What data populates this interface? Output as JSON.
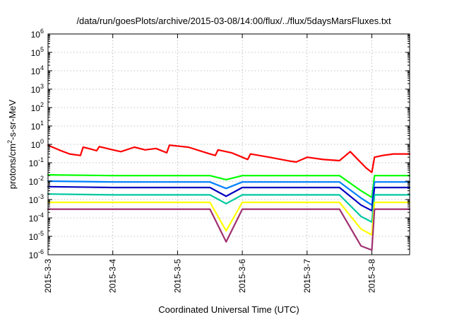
{
  "chart_data": {
    "type": "line",
    "title": "/data/run/goesPlots/archive/2015-03-08/14:00/flux/../flux/5daysMarsFluxes.txt",
    "xlabel": "Coordinated Universal Time (UTC)",
    "ylabel": "protons/cm2-s-sr-MeV",
    "ylabel_base": "protons/cm",
    "ylabel_sup": "2",
    "ylabel_rest": "-s-sr-MeV",
    "xscale": "time (days)",
    "yscale": "log",
    "xlim": [
      "2015-03-03 00:00",
      "2015-03-08 14:00"
    ],
    "ylim": [
      1e-06,
      1000000.0
    ],
    "grid": true,
    "legend": "none",
    "x_ticks": [
      "2015-3-3",
      "2015-3-4",
      "2015-3-5",
      "2015-3-6",
      "2015-3-7",
      "2015-3-8"
    ],
    "y_ticks": [
      {
        "base": "10",
        "exp": "-6"
      },
      {
        "base": "10",
        "exp": "-5"
      },
      {
        "base": "10",
        "exp": "-4"
      },
      {
        "base": "10",
        "exp": "-3"
      },
      {
        "base": "10",
        "exp": "-2"
      },
      {
        "base": "10",
        "exp": "-1"
      },
      {
        "base": "10",
        "exp": "0"
      },
      {
        "base": "10",
        "exp": "1"
      },
      {
        "base": "10",
        "exp": "2"
      },
      {
        "base": "10",
        "exp": "3"
      },
      {
        "base": "10",
        "exp": "4"
      },
      {
        "base": "10",
        "exp": "5"
      },
      {
        "base": "10",
        "exp": "6"
      }
    ],
    "series": [
      {
        "color": "#ff0000",
        "x": [
          "2015-03-03 00:00",
          "2015-03-03 04:00",
          "2015-03-03 08:00",
          "2015-03-03 12:00",
          "2015-03-03 13:00",
          "2015-03-03 16:00",
          "2015-03-03 18:00",
          "2015-03-03 19:00",
          "2015-03-04 00:00",
          "2015-03-04 03:00",
          "2015-03-04 08:00",
          "2015-03-04 12:00",
          "2015-03-04 16:00",
          "2015-03-04 20:00",
          "2015-03-04 21:00",
          "2015-03-05 04:00",
          "2015-03-05 12:00",
          "2015-03-05 14:00",
          "2015-03-05 15:00",
          "2015-03-05 20:00",
          "2015-03-06 00:00",
          "2015-03-06 02:00",
          "2015-03-06 03:00",
          "2015-03-06 10:00",
          "2015-03-06 18:00",
          "2015-03-06 20:00",
          "2015-03-07 00:00",
          "2015-03-07 06:00",
          "2015-03-07 12:00",
          "2015-03-07 16:00",
          "2015-03-07 20:00",
          "2015-03-07 22:00",
          "2015-03-08 00:00",
          "2015-03-08 01:00",
          "2015-03-08 04:00",
          "2015-03-08 08:00",
          "2015-03-08 14:00"
        ],
        "y": [
          0.9,
          0.5,
          0.3,
          0.25,
          0.7,
          0.55,
          0.45,
          0.75,
          0.5,
          0.4,
          0.7,
          0.5,
          0.6,
          0.35,
          0.9,
          0.7,
          0.3,
          0.25,
          0.5,
          0.35,
          0.2,
          0.15,
          0.3,
          0.2,
          0.12,
          0.11,
          0.2,
          0.15,
          0.13,
          0.4,
          0.1,
          0.05,
          0.03,
          0.2,
          0.25,
          0.3,
          0.3
        ]
      },
      {
        "color": "#00ff00",
        "x": [
          "2015-03-03 00:00",
          "2015-03-04 00:00",
          "2015-03-05 00:00",
          "2015-03-05 12:00",
          "2015-03-05 18:00",
          "2015-03-06 00:00",
          "2015-03-06 12:00",
          "2015-03-07 00:00",
          "2015-03-07 12:00",
          "2015-03-07 20:00",
          "2015-03-08 00:00",
          "2015-03-08 01:00",
          "2015-03-08 14:00"
        ],
        "y": [
          0.022,
          0.02,
          0.02,
          0.02,
          0.012,
          0.02,
          0.02,
          0.02,
          0.02,
          0.003,
          0.0013,
          0.02,
          0.02
        ]
      },
      {
        "color": "#0080ff",
        "x": [
          "2015-03-03 00:00",
          "2015-03-04 00:00",
          "2015-03-05 00:00",
          "2015-03-05 12:00",
          "2015-03-05 18:00",
          "2015-03-06 00:00",
          "2015-03-06 12:00",
          "2015-03-07 00:00",
          "2015-03-07 12:00",
          "2015-03-07 20:00",
          "2015-03-08 00:00",
          "2015-03-08 01:00",
          "2015-03-08 14:00"
        ],
        "y": [
          0.01,
          0.009,
          0.009,
          0.009,
          0.004,
          0.009,
          0.009,
          0.009,
          0.009,
          0.0012,
          0.0005,
          0.009,
          0.009
        ]
      },
      {
        "color": "#0000c0",
        "x": [
          "2015-03-03 00:00",
          "2015-03-04 00:00",
          "2015-03-05 00:00",
          "2015-03-05 12:00",
          "2015-03-05 18:00",
          "2015-03-06 00:00",
          "2015-03-06 12:00",
          "2015-03-07 00:00",
          "2015-03-07 12:00",
          "2015-03-07 20:00",
          "2015-03-08 00:00",
          "2015-03-08 01:00",
          "2015-03-08 14:00"
        ],
        "y": [
          0.005,
          0.0045,
          0.0045,
          0.0045,
          0.0015,
          0.0045,
          0.0045,
          0.0045,
          0.0045,
          0.0005,
          0.00025,
          0.0045,
          0.0045
        ]
      },
      {
        "color": "#00c8a0",
        "x": [
          "2015-03-03 00:00",
          "2015-03-04 00:00",
          "2015-03-05 00:00",
          "2015-03-05 12:00",
          "2015-03-05 18:00",
          "2015-03-06 00:00",
          "2015-03-06 12:00",
          "2015-03-07 00:00",
          "2015-03-07 12:00",
          "2015-03-07 20:00",
          "2015-03-08 00:00",
          "2015-03-08 01:00",
          "2015-03-08 14:00"
        ],
        "y": [
          0.002,
          0.0018,
          0.0018,
          0.0018,
          0.0006,
          0.0018,
          0.0018,
          0.0018,
          0.0018,
          0.00012,
          6e-05,
          0.0018,
          0.0018
        ]
      },
      {
        "color": "#ffff00",
        "x": [
          "2015-03-03 00:00",
          "2015-03-04 00:00",
          "2015-03-05 00:00",
          "2015-03-05 12:00",
          "2015-03-05 18:00",
          "2015-03-06 00:00",
          "2015-03-06 12:00",
          "2015-03-07 00:00",
          "2015-03-07 12:00",
          "2015-03-07 20:00",
          "2015-03-08 00:00",
          "2015-03-08 01:00",
          "2015-03-08 14:00"
        ],
        "y": [
          0.0007,
          0.0007,
          0.0007,
          0.0007,
          2e-05,
          0.0007,
          0.0007,
          0.0007,
          0.0007,
          2.5e-05,
          1.2e-05,
          0.0007,
          0.0007
        ]
      },
      {
        "color": "#a03070",
        "x": [
          "2015-03-03 00:00",
          "2015-03-04 00:00",
          "2015-03-05 00:00",
          "2015-03-05 12:00",
          "2015-03-05 18:00",
          "2015-03-06 00:00",
          "2015-03-06 12:00",
          "2015-03-07 00:00",
          "2015-03-07 12:00",
          "2015-03-07 20:00",
          "2015-03-08 00:00",
          "2015-03-08 01:00",
          "2015-03-08 14:00"
        ],
        "y": [
          0.0003,
          0.0003,
          0.0003,
          0.0003,
          5e-06,
          0.0003,
          0.0003,
          0.0003,
          0.0003,
          3e-06,
          1.8e-06,
          0.0003,
          0.0003
        ]
      }
    ]
  }
}
